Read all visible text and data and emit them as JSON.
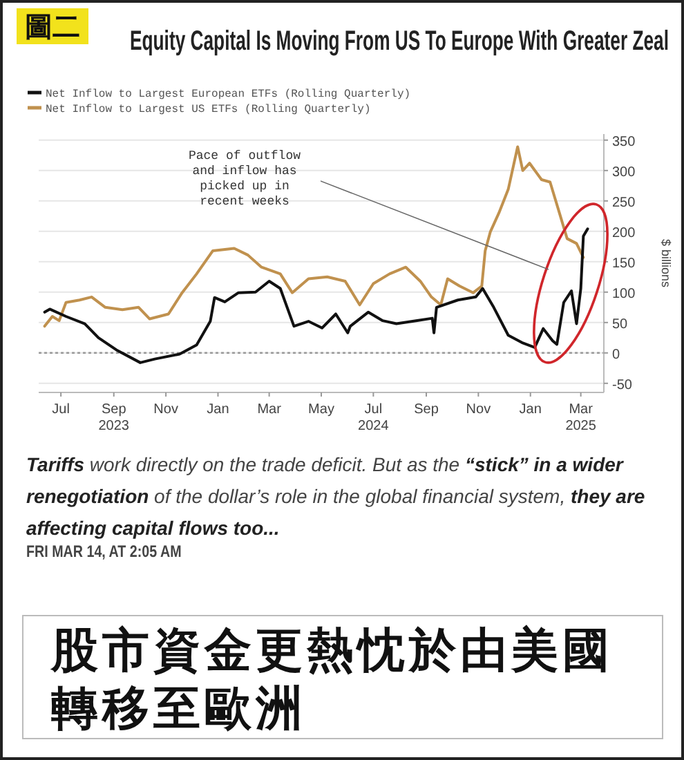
{
  "chart_data": {
    "type": "line",
    "title": "Equity Capital Is Moving From US To Europe With Greater Zeal",
    "ylabel": "$ billions",
    "series": [
      {
        "name": "Net Inflow to Largest European ETFs (Rolling Quarterly)",
        "color": "#111111",
        "x": [
          "2023-06-12",
          "2023-06-18",
          "2023-07-07",
          "2023-07-29",
          "2023-08-14",
          "2023-09-04",
          "2023-10-02",
          "2023-10-19",
          "2023-11-17",
          "2023-12-07",
          "2023-12-23",
          "2023-12-28",
          "2024-01-09",
          "2024-01-25",
          "2024-02-14",
          "2024-03-01",
          "2024-03-14",
          "2024-03-30",
          "2024-04-16",
          "2024-05-02",
          "2024-05-18",
          "2024-06-01",
          "2024-06-04",
          "2024-06-25",
          "2024-07-12",
          "2024-07-28",
          "2024-08-20",
          "2024-09-08",
          "2024-09-10",
          "2024-09-13",
          "2024-10-08",
          "2024-10-29",
          "2024-11-06",
          "2024-11-19",
          "2024-12-06",
          "2024-12-22",
          "2025-01-06",
          "2025-01-16",
          "2025-01-27",
          "2025-02-01",
          "2025-02-09",
          "2025-02-18",
          "2025-02-24",
          "2025-03-01",
          "2025-03-04",
          "2025-03-09"
        ],
        "values": [
          67,
          72,
          60,
          48,
          25,
          5,
          -16,
          -10,
          -2,
          13,
          52,
          91,
          84,
          99,
          100,
          118,
          106,
          44,
          52,
          41,
          64,
          33,
          44,
          67,
          53,
          48,
          53,
          57,
          33,
          75,
          87,
          92,
          106,
          75,
          29,
          17,
          9,
          40,
          20,
          14,
          83,
          102,
          48,
          106,
          192,
          204
        ]
      },
      {
        "name": "Net Inflow to Largest US ETFs (Rolling Quarterly)",
        "color": "#c0914e",
        "x": [
          "2023-06-12",
          "2023-06-21",
          "2023-06-29",
          "2023-07-07",
          "2023-07-23",
          "2023-08-06",
          "2023-08-22",
          "2023-09-11",
          "2023-09-30",
          "2023-10-13",
          "2023-11-04",
          "2023-11-20",
          "2023-12-07",
          "2023-12-26",
          "2024-01-20",
          "2024-02-05",
          "2024-02-21",
          "2024-03-14",
          "2024-03-28",
          "2024-04-16",
          "2024-05-08",
          "2024-05-29",
          "2024-06-15",
          "2024-07-01",
          "2024-07-20",
          "2024-08-08",
          "2024-08-25",
          "2024-09-07",
          "2024-09-18",
          "2024-09-26",
          "2024-10-10",
          "2024-10-26",
          "2024-11-05",
          "2024-11-09",
          "2024-11-15",
          "2024-11-25",
          "2024-12-06",
          "2024-12-17",
          "2024-12-23",
          "2024-12-31",
          "2025-01-14",
          "2025-01-24",
          "2025-02-04",
          "2025-02-13",
          "2025-02-24",
          "2025-03-04"
        ],
        "values": [
          44,
          60,
          53,
          83,
          87,
          92,
          75,
          71,
          75,
          56,
          64,
          99,
          130,
          168,
          172,
          161,
          141,
          130,
          99,
          122,
          125,
          118,
          79,
          114,
          130,
          141,
          118,
          92,
          79,
          122,
          110,
          99,
          110,
          168,
          199,
          230,
          269,
          339,
          300,
          312,
          285,
          281,
          230,
          188,
          180,
          157
        ]
      }
    ],
    "xlim": [
      "2023-06-05",
      "2025-03-28"
    ],
    "ylim": [
      -65,
      360
    ],
    "xticks": [
      {
        "value": "2023-07-01",
        "label": "Jul"
      },
      {
        "value": "2023-09-01",
        "label": "Sep\n2023"
      },
      {
        "value": "2023-11-01",
        "label": "Nov"
      },
      {
        "value": "2024-01-01",
        "label": "Jan"
      },
      {
        "value": "2024-03-01",
        "label": "Mar"
      },
      {
        "value": "2024-05-01",
        "label": "May"
      },
      {
        "value": "2024-07-01",
        "label": "Jul\n2024"
      },
      {
        "value": "2024-09-01",
        "label": "Sep"
      },
      {
        "value": "2024-11-01",
        "label": "Nov"
      },
      {
        "value": "2025-01-01",
        "label": "Jan"
      },
      {
        "value": "2025-03-01",
        "label": "Mar\n2025"
      }
    ],
    "yticks": [
      -50,
      0,
      50,
      100,
      150,
      200,
      250,
      300,
      350
    ],
    "grid": "y",
    "legend": "top left",
    "ref_lines": [
      {
        "axis": "y",
        "value": 0,
        "line_style": "dotted",
        "color": "#999999"
      }
    ],
    "annotations": [
      "圖二",
      "Pace of outflow and inflow has picked up in recent weeks",
      "**Tariffs** work directly on the trade deficit. But as the **“stick” in a wider renegotiation** of the dollar’s role in the global financial system, **they are affecting capital flows too...**",
      "FRI MAR 14, AT 2:05 AM",
      "股市資金更熱忱於由美國轉移至歐洲"
    ]
  }
}
